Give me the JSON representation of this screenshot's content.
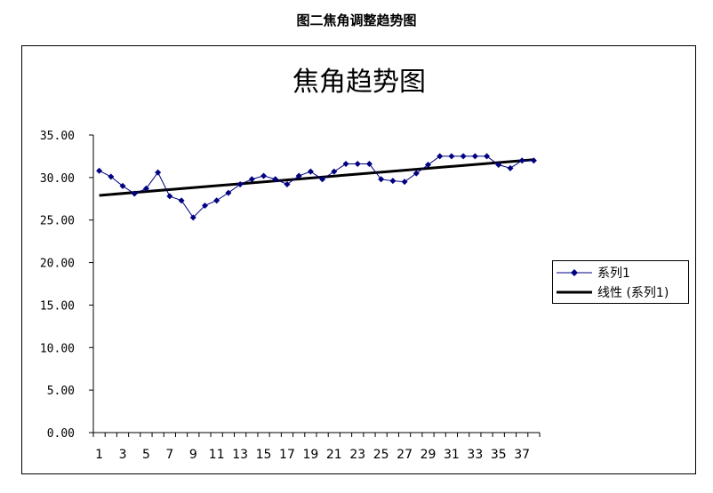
{
  "page_title": "图二焦角调整趋势图",
  "chart_data": {
    "type": "line",
    "title": "焦角趋势图",
    "xlabel": "",
    "ylabel": "",
    "ylim": [
      0,
      35
    ],
    "y_ticks": [
      "0.00",
      "5.00",
      "10.00",
      "15.00",
      "20.00",
      "25.00",
      "30.00",
      "35.00"
    ],
    "x": [
      1,
      2,
      3,
      4,
      5,
      6,
      7,
      8,
      9,
      10,
      11,
      12,
      13,
      14,
      15,
      16,
      17,
      18,
      19,
      20,
      21,
      22,
      23,
      24,
      25,
      26,
      27,
      28,
      29,
      30,
      31,
      32,
      33,
      34,
      35,
      36,
      37,
      38
    ],
    "x_tick_labels": [
      "1",
      "3",
      "5",
      "7",
      "9",
      "11",
      "13",
      "15",
      "17",
      "19",
      "21",
      "23",
      "25",
      "27",
      "29",
      "31",
      "33",
      "35",
      "37"
    ],
    "series": [
      {
        "name": "系列1",
        "color": "#000080",
        "marker": "diamond",
        "values": [
          30.8,
          30.1,
          29.0,
          28.1,
          28.7,
          30.6,
          27.8,
          27.3,
          25.3,
          26.7,
          27.3,
          28.2,
          29.2,
          29.8,
          30.2,
          29.8,
          29.2,
          30.2,
          30.7,
          29.8,
          30.7,
          31.6,
          31.6,
          31.6,
          29.8,
          29.6,
          29.5,
          30.5,
          31.5,
          32.5,
          32.5,
          32.5,
          32.5,
          32.5,
          31.5,
          31.1,
          32.0,
          32.0
        ]
      }
    ],
    "trendline": {
      "name": "线性 (系列1)",
      "color": "#000000",
      "type": "linear",
      "start": 27.9,
      "end": 32.1
    },
    "legend_position": "right",
    "grid": false
  }
}
